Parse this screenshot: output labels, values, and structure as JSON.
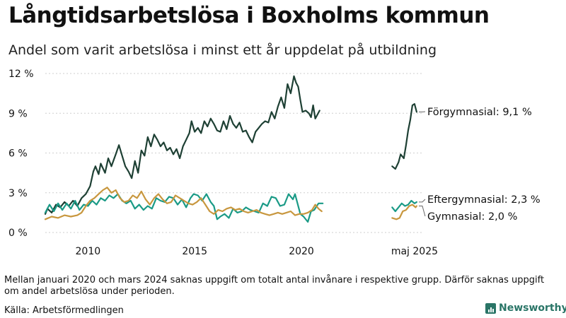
{
  "title": "Långtidsarbetslösa i Boxholms kommun",
  "subtitle": "Andel som varit arbetslösa i minst ett år uppdelat på utbildning",
  "footnote": "Mellan januari 2020 och mars 2024 saknas uppgift om totalt antal invånare i respektive grupp. Därför saknas uppgift om andel arbetslösa under perioden.",
  "source": "Källa: Arbetsförmedlingen",
  "logo_text": "Newsworthy",
  "colors": {
    "forgymnasial": "#1e4034",
    "eftergymnasial": "#1a9a86",
    "gymnasial": "#c8973e",
    "grid": "#cfcfcf",
    "text": "#111111"
  },
  "chart_data": {
    "type": "line",
    "ylim": [
      0,
      12
    ],
    "y_ticks": [
      {
        "value": 0,
        "label": "0 %"
      },
      {
        "value": 3,
        "label": "3 %"
      },
      {
        "value": 6,
        "label": "6 %"
      },
      {
        "value": 9,
        "label": "9 %"
      },
      {
        "value": 12,
        "label": "12 %"
      }
    ],
    "x_range": [
      2008.0,
      2025.7
    ],
    "x_ticks": [
      {
        "value": 2010,
        "label": "2010"
      },
      {
        "value": 2015,
        "label": "2015"
      },
      {
        "value": 2020,
        "label": "2020"
      },
      {
        "value": 2025.3,
        "label": "maj 2025"
      }
    ],
    "series": [
      {
        "name": "Förgymnasial",
        "end_label": "Förgymnasial: 9,1 %",
        "color_key": "forgymnasial",
        "segments": [
          [
            [
              2008.0,
              1.4
            ],
            [
              2008.1,
              1.8
            ],
            [
              2008.3,
              1.5
            ],
            [
              2008.5,
              2.1
            ],
            [
              2008.7,
              1.9
            ],
            [
              2008.9,
              2.3
            ],
            [
              2009.1,
              2.0
            ],
            [
              2009.3,
              2.4
            ],
            [
              2009.5,
              2.0
            ],
            [
              2009.7,
              2.6
            ],
            [
              2009.9,
              2.9
            ],
            [
              2010.1,
              3.5
            ],
            [
              2010.25,
              4.6
            ],
            [
              2010.35,
              5.0
            ],
            [
              2010.5,
              4.4
            ],
            [
              2010.6,
              5.2
            ],
            [
              2010.8,
              4.5
            ],
            [
              2010.95,
              5.6
            ],
            [
              2011.1,
              5.0
            ],
            [
              2011.3,
              5.9
            ],
            [
              2011.45,
              6.6
            ],
            [
              2011.6,
              5.8
            ],
            [
              2011.75,
              5.0
            ],
            [
              2011.9,
              4.6
            ],
            [
              2012.05,
              4.1
            ],
            [
              2012.2,
              5.4
            ],
            [
              2012.35,
              4.5
            ],
            [
              2012.5,
              6.2
            ],
            [
              2012.65,
              5.8
            ],
            [
              2012.8,
              7.2
            ],
            [
              2012.95,
              6.5
            ],
            [
              2013.1,
              7.4
            ],
            [
              2013.25,
              7.0
            ],
            [
              2013.4,
              6.5
            ],
            [
              2013.55,
              6.8
            ],
            [
              2013.7,
              6.2
            ],
            [
              2013.85,
              6.4
            ],
            [
              2014.0,
              5.9
            ],
            [
              2014.15,
              6.3
            ],
            [
              2014.3,
              5.6
            ],
            [
              2014.45,
              6.5
            ],
            [
              2014.6,
              7.0
            ],
            [
              2014.75,
              7.5
            ],
            [
              2014.85,
              8.4
            ],
            [
              2015.0,
              7.6
            ],
            [
              2015.15,
              7.9
            ],
            [
              2015.3,
              7.5
            ],
            [
              2015.45,
              8.4
            ],
            [
              2015.6,
              8.0
            ],
            [
              2015.75,
              8.6
            ],
            [
              2015.9,
              8.2
            ],
            [
              2016.05,
              7.7
            ],
            [
              2016.2,
              7.6
            ],
            [
              2016.35,
              8.4
            ],
            [
              2016.5,
              7.8
            ],
            [
              2016.65,
              8.8
            ],
            [
              2016.8,
              8.2
            ],
            [
              2016.95,
              7.9
            ],
            [
              2017.1,
              8.3
            ],
            [
              2017.25,
              7.6
            ],
            [
              2017.4,
              7.7
            ],
            [
              2017.55,
              7.2
            ],
            [
              2017.7,
              6.8
            ],
            [
              2017.85,
              7.6
            ],
            [
              2018.0,
              7.9
            ],
            [
              2018.15,
              8.2
            ],
            [
              2018.3,
              8.4
            ],
            [
              2018.45,
              8.3
            ],
            [
              2018.6,
              9.1
            ],
            [
              2018.75,
              8.6
            ],
            [
              2018.9,
              9.5
            ],
            [
              2019.05,
              10.2
            ],
            [
              2019.2,
              9.4
            ],
            [
              2019.35,
              11.2
            ],
            [
              2019.5,
              10.5
            ],
            [
              2019.65,
              11.8
            ],
            [
              2019.75,
              11.3
            ],
            [
              2019.85,
              11.0
            ],
            [
              2019.95,
              10.0
            ],
            [
              2020.05,
              9.1
            ],
            [
              2020.2,
              9.2
            ],
            [
              2020.35,
              9.0
            ],
            [
              2020.45,
              8.7
            ],
            [
              2020.55,
              9.6
            ],
            [
              2020.65,
              8.6
            ],
            [
              2020.75,
              8.9
            ],
            [
              2020.85,
              9.2
            ]
          ],
          [
            [
              2024.25,
              5.0
            ],
            [
              2024.4,
              4.8
            ],
            [
              2024.55,
              5.3
            ],
            [
              2024.65,
              5.9
            ],
            [
              2024.8,
              5.6
            ],
            [
              2024.9,
              6.6
            ],
            [
              2025.0,
              7.7
            ],
            [
              2025.1,
              8.5
            ],
            [
              2025.2,
              9.6
            ],
            [
              2025.3,
              9.7
            ],
            [
              2025.4,
              9.1
            ]
          ]
        ]
      },
      {
        "name": "Eftergymnasial",
        "end_label": "Eftergymnasial: 2,3 %",
        "color_key": "eftergymnasial",
        "segments": [
          [
            [
              2008.0,
              1.5
            ],
            [
              2008.2,
              2.1
            ],
            [
              2008.4,
              1.6
            ],
            [
              2008.6,
              2.2
            ],
            [
              2008.8,
              1.7
            ],
            [
              2009.0,
              2.2
            ],
            [
              2009.2,
              1.8
            ],
            [
              2009.4,
              2.4
            ],
            [
              2009.6,
              1.7
            ],
            [
              2009.8,
              2.1
            ],
            [
              2010.0,
              2.0
            ],
            [
              2010.2,
              2.4
            ],
            [
              2010.4,
              2.1
            ],
            [
              2010.6,
              2.6
            ],
            [
              2010.8,
              2.4
            ],
            [
              2011.0,
              2.8
            ],
            [
              2011.2,
              2.6
            ],
            [
              2011.4,
              2.9
            ],
            [
              2011.6,
              2.4
            ],
            [
              2011.8,
              2.2
            ],
            [
              2012.0,
              2.4
            ],
            [
              2012.2,
              1.8
            ],
            [
              2012.4,
              2.1
            ],
            [
              2012.6,
              1.7
            ],
            [
              2012.8,
              2.0
            ],
            [
              2013.0,
              1.8
            ],
            [
              2013.2,
              2.6
            ],
            [
              2013.4,
              2.4
            ],
            [
              2013.6,
              2.3
            ],
            [
              2013.8,
              2.7
            ],
            [
              2014.0,
              2.6
            ],
            [
              2014.2,
              2.1
            ],
            [
              2014.4,
              2.5
            ],
            [
              2014.6,
              1.9
            ],
            [
              2014.8,
              2.6
            ],
            [
              2014.95,
              2.9
            ],
            [
              2015.15,
              2.8
            ],
            [
              2015.35,
              2.4
            ],
            [
              2015.55,
              2.9
            ],
            [
              2015.75,
              2.3
            ],
            [
              2015.9,
              2.0
            ],
            [
              2016.05,
              1.0
            ],
            [
              2016.2,
              1.2
            ],
            [
              2016.4,
              1.4
            ],
            [
              2016.6,
              1.1
            ],
            [
              2016.8,
              1.8
            ],
            [
              2017.0,
              1.5
            ],
            [
              2017.2,
              1.6
            ],
            [
              2017.4,
              1.9
            ],
            [
              2017.6,
              1.7
            ],
            [
              2017.8,
              1.6
            ],
            [
              2018.0,
              1.5
            ],
            [
              2018.2,
              2.2
            ],
            [
              2018.4,
              2.0
            ],
            [
              2018.6,
              2.7
            ],
            [
              2018.8,
              2.6
            ],
            [
              2019.0,
              2.0
            ],
            [
              2019.2,
              2.1
            ],
            [
              2019.4,
              2.9
            ],
            [
              2019.6,
              2.5
            ],
            [
              2019.7,
              2.9
            ],
            [
              2019.8,
              2.3
            ],
            [
              2019.95,
              1.4
            ],
            [
              2020.1,
              1.2
            ],
            [
              2020.3,
              0.8
            ],
            [
              2020.45,
              1.6
            ],
            [
              2020.6,
              1.7
            ],
            [
              2020.8,
              2.2
            ],
            [
              2021.0,
              2.2
            ]
          ],
          [
            [
              2024.25,
              1.9
            ],
            [
              2024.4,
              1.6
            ],
            [
              2024.55,
              1.9
            ],
            [
              2024.7,
              2.2
            ],
            [
              2024.85,
              2.0
            ],
            [
              2025.0,
              2.1
            ],
            [
              2025.15,
              2.4
            ],
            [
              2025.3,
              2.2
            ],
            [
              2025.4,
              2.3
            ]
          ]
        ]
      },
      {
        "name": "Gymnasial",
        "end_label": "Gymnasial: 2,0 %",
        "color_key": "gymnasial",
        "segments": [
          [
            [
              2008.0,
              1.0
            ],
            [
              2008.3,
              1.2
            ],
            [
              2008.6,
              1.1
            ],
            [
              2008.9,
              1.3
            ],
            [
              2009.2,
              1.2
            ],
            [
              2009.5,
              1.3
            ],
            [
              2009.7,
              1.5
            ],
            [
              2009.9,
              2.0
            ],
            [
              2010.1,
              2.4
            ],
            [
              2010.3,
              2.6
            ],
            [
              2010.5,
              2.9
            ],
            [
              2010.7,
              3.2
            ],
            [
              2010.9,
              3.4
            ],
            [
              2011.1,
              3.0
            ],
            [
              2011.3,
              3.2
            ],
            [
              2011.5,
              2.6
            ],
            [
              2011.7,
              2.3
            ],
            [
              2011.9,
              2.4
            ],
            [
              2012.1,
              2.8
            ],
            [
              2012.3,
              2.6
            ],
            [
              2012.5,
              3.1
            ],
            [
              2012.7,
              2.5
            ],
            [
              2012.9,
              2.1
            ],
            [
              2013.1,
              2.6
            ],
            [
              2013.3,
              2.9
            ],
            [
              2013.5,
              2.5
            ],
            [
              2013.7,
              2.2
            ],
            [
              2013.9,
              2.3
            ],
            [
              2014.1,
              2.8
            ],
            [
              2014.3,
              2.6
            ],
            [
              2014.5,
              2.4
            ],
            [
              2014.7,
              2.2
            ],
            [
              2014.9,
              2.1
            ],
            [
              2015.1,
              2.3
            ],
            [
              2015.3,
              2.6
            ],
            [
              2015.5,
              2.1
            ],
            [
              2015.7,
              1.6
            ],
            [
              2015.9,
              1.4
            ],
            [
              2016.1,
              1.7
            ],
            [
              2016.3,
              1.6
            ],
            [
              2016.5,
              1.8
            ],
            [
              2016.7,
              1.9
            ],
            [
              2016.9,
              1.7
            ],
            [
              2017.1,
              1.8
            ],
            [
              2017.3,
              1.6
            ],
            [
              2017.5,
              1.5
            ],
            [
              2017.7,
              1.6
            ],
            [
              2017.9,
              1.7
            ],
            [
              2018.1,
              1.5
            ],
            [
              2018.3,
              1.4
            ],
            [
              2018.5,
              1.3
            ],
            [
              2018.7,
              1.4
            ],
            [
              2018.9,
              1.5
            ],
            [
              2019.1,
              1.4
            ],
            [
              2019.3,
              1.5
            ],
            [
              2019.5,
              1.6
            ],
            [
              2019.7,
              1.3
            ],
            [
              2019.9,
              1.4
            ],
            [
              2020.1,
              1.4
            ],
            [
              2020.3,
              1.5
            ],
            [
              2020.5,
              1.7
            ],
            [
              2020.65,
              2.1
            ],
            [
              2020.8,
              1.8
            ],
            [
              2020.95,
              1.6
            ]
          ],
          [
            [
              2024.25,
              1.1
            ],
            [
              2024.45,
              1.0
            ],
            [
              2024.6,
              1.1
            ],
            [
              2024.75,
              1.6
            ],
            [
              2024.9,
              1.7
            ],
            [
              2025.05,
              2.0
            ],
            [
              2025.2,
              2.1
            ],
            [
              2025.35,
              1.9
            ],
            [
              2025.4,
              2.0
            ]
          ]
        ]
      }
    ]
  }
}
